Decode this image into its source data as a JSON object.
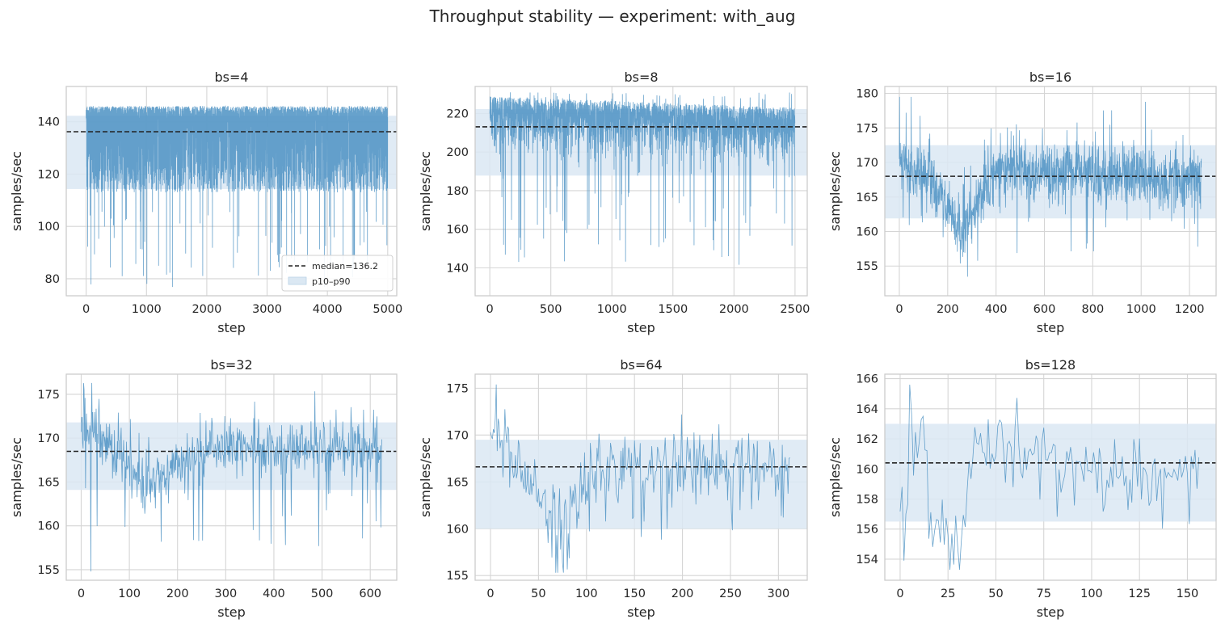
{
  "figure": {
    "title": "Throughput stability — experiment: with_aug"
  },
  "colors": {
    "series": "#4c92c3",
    "band": "#dbe8f3",
    "median": "#222222",
    "grid": "#d5d5d5",
    "spine": "#cccccc"
  },
  "chart_data": [
    {
      "type": "line",
      "title": "bs=4",
      "xlabel": "step",
      "ylabel": "samples/sec",
      "xlim": [
        -330,
        5150
      ],
      "ylim": [
        73.5,
        153.5
      ],
      "xticks": [
        0,
        1000,
        2000,
        3000,
        4000,
        5000
      ],
      "yticks": [
        80,
        100,
        120,
        140
      ],
      "n_steps": 5000,
      "median": 136.2,
      "p10": 114.3,
      "p90": 142.3,
      "main_low": 113,
      "main_high": 146,
      "min": 76,
      "max": 146,
      "legend": {
        "median_label": "median=136.2",
        "band_label": "p10–p90",
        "placement": "lower-right"
      }
    },
    {
      "type": "line",
      "title": "bs=8",
      "xlabel": "step",
      "ylabel": "samples/sec",
      "xlim": [
        -120,
        2600
      ],
      "ylim": [
        125.5,
        234
      ],
      "xticks": [
        0,
        500,
        1000,
        1500,
        2000,
        2500
      ],
      "yticks": [
        140,
        160,
        180,
        200,
        220
      ],
      "n_steps": 2500,
      "median": 213.1,
      "p10": 187.8,
      "p90": 222.3,
      "main_low": 182,
      "main_high": 229,
      "min": 131,
      "max": 231
    },
    {
      "type": "line",
      "title": "bs=16",
      "xlabel": "step",
      "ylabel": "samples/sec",
      "xlim": [
        -60,
        1310
      ],
      "ylim": [
        150.7,
        181
      ],
      "xticks": [
        0,
        200,
        400,
        600,
        800,
        1000,
        1200
      ],
      "yticks": [
        155,
        160,
        165,
        170,
        175,
        180
      ],
      "n_steps": 1250,
      "median": 168.0,
      "p10": 161.9,
      "p90": 172.5,
      "min": 152,
      "max": 179.5
    },
    {
      "type": "line",
      "title": "bs=32",
      "xlabel": "step",
      "ylabel": "samples/sec",
      "xlim": [
        -31,
        655
      ],
      "ylim": [
        153.8,
        177.3
      ],
      "xticks": [
        0,
        100,
        200,
        300,
        400,
        500,
        600
      ],
      "yticks": [
        155,
        160,
        165,
        170,
        175
      ],
      "n_steps": 625,
      "median": 168.5,
      "p10": 164.1,
      "p90": 171.8,
      "min": 154.8,
      "max": 176.3
    },
    {
      "type": "line",
      "title": "bs=64",
      "xlabel": "step",
      "ylabel": "samples/sec",
      "xlim": [
        -16,
        330
      ],
      "ylim": [
        154.5,
        176.5
      ],
      "xticks": [
        0,
        50,
        100,
        150,
        200,
        250,
        300
      ],
      "yticks": [
        155,
        160,
        165,
        170,
        175
      ],
      "n_steps": 313,
      "median": 166.6,
      "p10": 160.0,
      "p90": 169.5,
      "min": 155.3,
      "max": 175.4
    },
    {
      "type": "line",
      "title": "bs=128",
      "xlabel": "step",
      "ylabel": "samples/sec",
      "xlim": [
        -8,
        165
      ],
      "ylim": [
        152.6,
        166.3
      ],
      "xticks": [
        0,
        25,
        50,
        75,
        100,
        125,
        150
      ],
      "yticks": [
        154,
        156,
        158,
        160,
        162,
        164,
        166
      ],
      "n_steps": 157,
      "median": 160.4,
      "p10": 156.5,
      "p90": 163.0,
      "min": 153.3,
      "max": 165.6
    }
  ]
}
